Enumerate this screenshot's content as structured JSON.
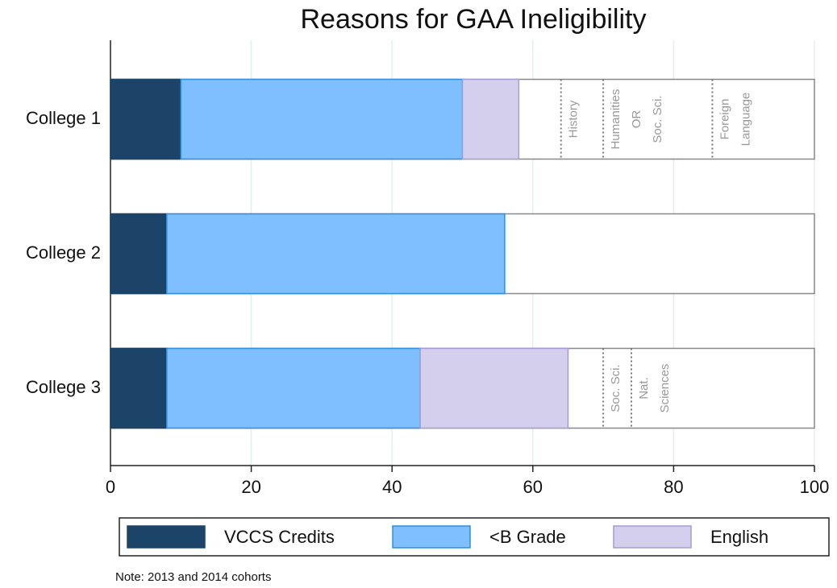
{
  "chart_data": {
    "type": "stacked-barh",
    "title": "Reasons for GAA Ineligibility",
    "categories": [
      "College 1",
      "College 2",
      "College 3"
    ],
    "series": [
      {
        "name": "VCCS Credits",
        "color": "#1c4468",
        "stroke": "#1c4468",
        "values": [
          10,
          8,
          8
        ]
      },
      {
        "name": "<B Grade",
        "color": "#80bfff",
        "stroke": "#2f8fe0",
        "values": [
          40,
          48,
          36
        ]
      },
      {
        "name": "English",
        "color": "#d4cfec",
        "stroke": "#a79ad6",
        "values": [
          8,
          0,
          21
        ]
      }
    ],
    "xlim": [
      0,
      100
    ],
    "xticks": [
      0,
      20,
      40,
      60,
      80,
      100
    ],
    "grid": true,
    "bar_annotations": [
      [
        {
          "x": 64,
          "text": [
            "History"
          ]
        },
        {
          "x": 70,
          "text": [
            "Humanities",
            "OR",
            "Soc. Sci."
          ]
        },
        {
          "x": 85.5,
          "text": [
            "Foreign",
            "Language"
          ]
        }
      ],
      [],
      [
        {
          "x": 70,
          "text": [
            "Soc. Sci."
          ]
        },
        {
          "x": 74,
          "text": [
            "Nat.",
            "Sciences"
          ]
        }
      ]
    ],
    "note": "Note: 2013 and 2014 cohorts"
  }
}
